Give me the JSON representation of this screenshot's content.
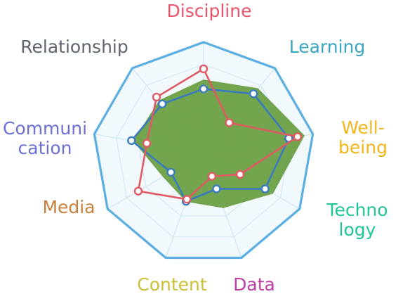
{
  "chart_data": {
    "type": "radar",
    "title": "",
    "axes": [
      {
        "name": "Discipline",
        "lines": [
          "Discipline"
        ],
        "color": "#e8556b"
      },
      {
        "name": "Learning",
        "lines": [
          "Learning"
        ],
        "color": "#3aa6c4"
      },
      {
        "name": "Well-being",
        "lines": [
          "Well-",
          "being"
        ],
        "color": "#f3b51b"
      },
      {
        "name": "Technology",
        "lines": [
          "Techno",
          "logy"
        ],
        "color": "#22c49a"
      },
      {
        "name": "Data",
        "lines": [
          "Data"
        ],
        "color": "#bf3ea8"
      },
      {
        "name": "Content",
        "lines": [
          "Content"
        ],
        "color": "#c9c035"
      },
      {
        "name": "Media",
        "lines": [
          "Media"
        ],
        "color": "#c8803a"
      },
      {
        "name": "Communication",
        "lines": [
          "Communi",
          "cation"
        ],
        "color": "#6b6fd6"
      },
      {
        "name": "Relationship",
        "lines": [
          "Relationship"
        ],
        "color": "#5f6670"
      }
    ],
    "rmax": 5,
    "grid_levels": 5,
    "grid": true,
    "legend": "none",
    "series": [
      {
        "style": "filled",
        "color": "#6aa044",
        "values": [
          3.3,
          3.8,
          4.6,
          3.6,
          2.6,
          2.3,
          2.1,
          3.2,
          3.1
        ]
      },
      {
        "style": "line-markers",
        "color": "#3a7bc0",
        "values": [
          2.9,
          3.5,
          3.9,
          3.2,
          1.7,
          2.3,
          1.7,
          3.3,
          2.9
        ]
      },
      {
        "style": "line-markers",
        "color": "#e05a64",
        "values": [
          3.8,
          1.8,
          4.3,
          1.9,
          1.1,
          2.2,
          3.4,
          2.6,
          3.3
        ]
      }
    ]
  }
}
